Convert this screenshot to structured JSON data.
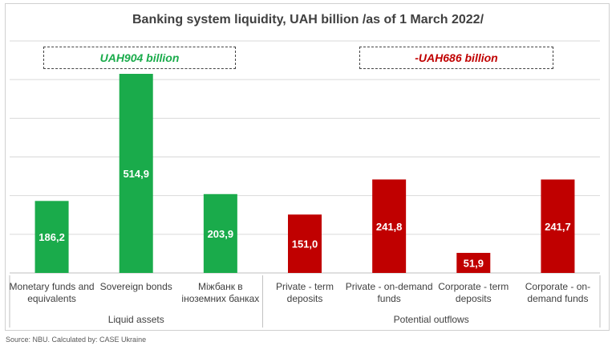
{
  "chart_data": {
    "type": "bar",
    "title": "Banking system liquidity, UAH billion /as of 1 March 2022/",
    "categories": [
      [
        "Monetary funds and",
        "equivalents"
      ],
      [
        "Sovereign bonds"
      ],
      [
        "Міжбанк в",
        "іноземних банках"
      ],
      [
        "Private - term",
        "deposits"
      ],
      [
        "Private - on-demand",
        "funds"
      ],
      [
        "Corporate - term",
        "deposits"
      ],
      [
        "Corporate - on-",
        "demand funds"
      ]
    ],
    "values": [
      186.2,
      514.9,
      203.9,
      151.0,
      241.8,
      51.9,
      241.7
    ],
    "value_labels": [
      "186,2",
      "514,9",
      "203,9",
      "151,0",
      "241,8",
      "51,9",
      "241,7"
    ],
    "groups": [
      {
        "label": "Liquid assets",
        "start": 0,
        "end": 2,
        "color": "#1aab4b",
        "summary": "UAH904 billion"
      },
      {
        "label": "Potential outflows",
        "start": 3,
        "end": 6,
        "color": "#c00000",
        "summary": "-UAH686 billion"
      }
    ],
    "ylim": [
      0,
      600
    ],
    "grid": true,
    "source": "Source: NBU. Calculated by: CASE Ukraine"
  }
}
